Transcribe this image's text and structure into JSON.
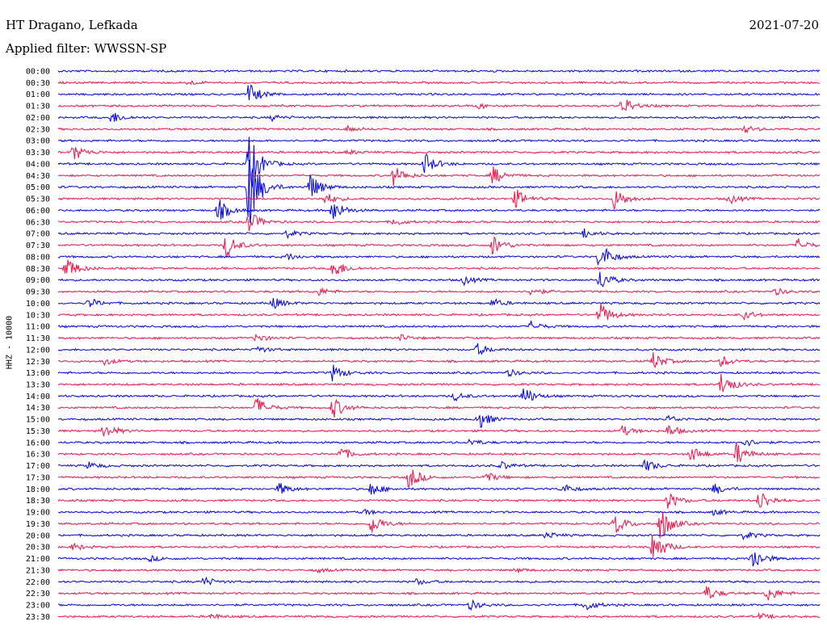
{
  "header": {
    "station": "HT Dragano, Lefkada",
    "date": "2021-07-20",
    "filter": "Applied filter: WWSSN-SP"
  },
  "chart_data": {
    "type": "line",
    "title": "HT Dragano, Lefkada",
    "ylabel": "HHZ - 10000",
    "trace_colors": [
      "#0000e6",
      "#f0144a"
    ],
    "rows": [
      {
        "label": "00:00",
        "events": []
      },
      {
        "label": "00:30",
        "events": [
          [
            0.17,
            0.3
          ]
        ]
      },
      {
        "label": "01:00",
        "events": [
          [
            0.25,
            1.6
          ]
        ]
      },
      {
        "label": "01:30",
        "events": [
          [
            0.55,
            0.4
          ],
          [
            0.74,
            1.3
          ]
        ]
      },
      {
        "label": "02:00",
        "events": [
          [
            0.07,
            0.9
          ],
          [
            0.28,
            0.4
          ]
        ]
      },
      {
        "label": "02:30",
        "events": [
          [
            0.38,
            0.4
          ],
          [
            0.9,
            0.5
          ]
        ]
      },
      {
        "label": "03:00",
        "events": []
      },
      {
        "label": "03:30",
        "events": [
          [
            0.02,
            1.2
          ],
          [
            0.38,
            0.3
          ]
        ]
      },
      {
        "label": "04:00",
        "events": [
          [
            0.25,
            4.5
          ],
          [
            0.48,
            1.6
          ]
        ]
      },
      {
        "label": "04:30",
        "events": [
          [
            0.44,
            1.4
          ],
          [
            0.57,
            1.3
          ]
        ]
      },
      {
        "label": "05:00",
        "events": [
          [
            0.25,
            6.0
          ],
          [
            0.33,
            2.0
          ]
        ]
      },
      {
        "label": "05:30",
        "events": [
          [
            0.35,
            0.9
          ],
          [
            0.6,
            1.4
          ],
          [
            0.73,
            1.6
          ],
          [
            0.88,
            0.7
          ]
        ]
      },
      {
        "label": "06:00",
        "events": [
          [
            0.21,
            1.6
          ],
          [
            0.36,
            1.6
          ]
        ]
      },
      {
        "label": "06:30",
        "events": [
          [
            0.25,
            1.6
          ],
          [
            0.44,
            0.5
          ]
        ]
      },
      {
        "label": "07:00",
        "events": [
          [
            0.3,
            0.5
          ],
          [
            0.69,
            0.6
          ]
        ]
      },
      {
        "label": "07:30",
        "events": [
          [
            0.22,
            1.8
          ],
          [
            0.57,
            1.5
          ],
          [
            0.97,
            0.9
          ]
        ]
      },
      {
        "label": "08:00",
        "events": [
          [
            0.3,
            0.5
          ],
          [
            0.71,
            2.2
          ]
        ]
      },
      {
        "label": "08:30",
        "events": [
          [
            0.01,
            1.8
          ],
          [
            0.36,
            1.6
          ]
        ]
      },
      {
        "label": "09:00",
        "events": [
          [
            0.53,
            0.7
          ],
          [
            0.71,
            1.5
          ]
        ]
      },
      {
        "label": "09:30",
        "events": [
          [
            0.34,
            0.6
          ],
          [
            0.62,
            0.6
          ],
          [
            0.94,
            0.5
          ]
        ]
      },
      {
        "label": "10:00",
        "events": [
          [
            0.04,
            0.7
          ],
          [
            0.28,
            0.9
          ],
          [
            0.57,
            0.6
          ]
        ]
      },
      {
        "label": "10:30",
        "events": [
          [
            0.71,
            1.8
          ],
          [
            0.9,
            0.6
          ]
        ]
      },
      {
        "label": "11:00",
        "events": [
          [
            0.62,
            0.7
          ]
        ]
      },
      {
        "label": "11:30",
        "events": [
          [
            0.26,
            0.6
          ],
          [
            0.45,
            0.4
          ]
        ]
      },
      {
        "label": "12:00",
        "events": [
          [
            0.26,
            0.5
          ],
          [
            0.55,
            0.9
          ]
        ]
      },
      {
        "label": "12:30",
        "events": [
          [
            0.06,
            0.5
          ],
          [
            0.78,
            1.3
          ],
          [
            0.87,
            0.8
          ]
        ]
      },
      {
        "label": "13:00",
        "events": [
          [
            0.59,
            0.5
          ],
          [
            0.36,
            1.2
          ]
        ]
      },
      {
        "label": "13:30",
        "events": [
          [
            0.87,
            1.8
          ]
        ]
      },
      {
        "label": "14:00",
        "events": [
          [
            0.52,
            0.6
          ],
          [
            0.61,
            1.4
          ]
        ]
      },
      {
        "label": "14:30",
        "events": [
          [
            0.26,
            1.5
          ],
          [
            0.36,
            1.6
          ]
        ]
      },
      {
        "label": "15:00",
        "events": [
          [
            0.55,
            1.6
          ],
          [
            0.8,
            0.5
          ]
        ]
      },
      {
        "label": "15:30",
        "events": [
          [
            0.06,
            1.1
          ],
          [
            0.74,
            0.7
          ],
          [
            0.8,
            0.9
          ]
        ]
      },
      {
        "label": "16:00",
        "events": [
          [
            0.54,
            0.5
          ],
          [
            0.9,
            0.6
          ]
        ]
      },
      {
        "label": "16:30",
        "events": [
          [
            0.37,
            1.0
          ],
          [
            0.83,
            1.2
          ],
          [
            0.89,
            1.6
          ]
        ]
      },
      {
        "label": "17:00",
        "events": [
          [
            0.04,
            0.5
          ],
          [
            0.58,
            0.6
          ],
          [
            0.77,
            0.9
          ]
        ]
      },
      {
        "label": "17:30",
        "events": [
          [
            0.46,
            1.7
          ],
          [
            0.56,
            0.8
          ]
        ]
      },
      {
        "label": "18:00",
        "events": [
          [
            0.29,
            0.9
          ],
          [
            0.41,
            1.0
          ],
          [
            0.66,
            0.8
          ],
          [
            0.86,
            0.8
          ]
        ]
      },
      {
        "label": "18:30",
        "events": [
          [
            0.8,
            1.2
          ],
          [
            0.92,
            1.6
          ]
        ]
      },
      {
        "label": "19:00",
        "events": [
          [
            0.4,
            0.4
          ],
          [
            0.86,
            0.4
          ]
        ]
      },
      {
        "label": "19:30",
        "events": [
          [
            0.41,
            1.6
          ],
          [
            0.73,
            1.6
          ],
          [
            0.79,
            2.5
          ]
        ]
      },
      {
        "label": "20:00",
        "events": [
          [
            0.64,
            0.5
          ],
          [
            0.9,
            0.6
          ]
        ]
      },
      {
        "label": "20:30",
        "events": [
          [
            0.02,
            0.5
          ],
          [
            0.78,
            2.5
          ]
        ]
      },
      {
        "label": "21:00",
        "events": [
          [
            0.91,
            1.8
          ],
          [
            0.12,
            0.4
          ]
        ]
      },
      {
        "label": "21:30",
        "events": [
          [
            0.34,
            0.3
          ],
          [
            0.6,
            0.3
          ]
        ]
      },
      {
        "label": "22:00",
        "events": [
          [
            0.19,
            0.7
          ],
          [
            0.47,
            0.4
          ]
        ]
      },
      {
        "label": "22:30",
        "events": [
          [
            0.85,
            1.1
          ],
          [
            0.93,
            1.2
          ]
        ]
      },
      {
        "label": "23:00",
        "events": [
          [
            0.54,
            0.7
          ],
          [
            0.69,
            0.9
          ]
        ]
      },
      {
        "label": "23:30",
        "events": [
          [
            0.2,
            0.4
          ],
          [
            0.92,
            0.4
          ]
        ]
      }
    ]
  }
}
